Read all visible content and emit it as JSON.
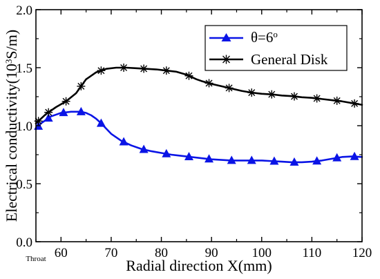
{
  "chart_data": {
    "type": "line",
    "xlabel": "Radial direction X(mm)",
    "ylabel_parts": {
      "pre": "Electrical conductivity(10",
      "sup": "3",
      "post": "S/m)"
    },
    "xlim": [
      55,
      120
    ],
    "ylim": [
      0.0,
      2.0
    ],
    "x_ticks": [
      60,
      70,
      80,
      90,
      100,
      110,
      120
    ],
    "y_ticks": [
      "0.0",
      "0.5",
      "1.0",
      "1.5",
      "2.0"
    ],
    "x_start_label": "Throat",
    "legend_position": "top-right",
    "series": [
      {
        "name_parts": {
          "pre": "θ=6",
          "sup": "o"
        },
        "color": "#0a14e6",
        "marker": "triangle",
        "x": [
          55,
          56,
          58,
          60,
          62,
          64,
          65,
          66,
          67,
          68,
          70,
          72,
          74,
          76,
          78,
          80,
          82,
          84,
          86,
          88,
          90,
          92,
          94,
          96,
          98,
          100,
          102,
          104,
          106,
          108,
          110,
          112,
          114,
          116,
          118,
          120
        ],
        "y": [
          0.97,
          1.02,
          1.08,
          1.11,
          1.12,
          1.12,
          1.11,
          1.09,
          1.06,
          1.02,
          0.93,
          0.87,
          0.83,
          0.8,
          0.78,
          0.765,
          0.75,
          0.74,
          0.73,
          0.72,
          0.71,
          0.705,
          0.7,
          0.7,
          0.7,
          0.7,
          0.695,
          0.69,
          0.685,
          0.685,
          0.69,
          0.7,
          0.715,
          0.73,
          0.735,
          0.73
        ],
        "marker_x": [
          55.5,
          57.5,
          60.5,
          64,
          68,
          72.5,
          76.5,
          81,
          85.5,
          89.5,
          94,
          98,
          102.5,
          106.5,
          111,
          115,
          118.5
        ]
      },
      {
        "name": "General Disk",
        "color": "#000000",
        "marker": "asterisk",
        "x": [
          55,
          57,
          59,
          61,
          63,
          65,
          67,
          69,
          71,
          73,
          75,
          77,
          79,
          81,
          83,
          85,
          86,
          87,
          88,
          90,
          92,
          94,
          96,
          98,
          100,
          102,
          104,
          106,
          108,
          110,
          112,
          114,
          116,
          118,
          120
        ],
        "y": [
          1.02,
          1.1,
          1.16,
          1.21,
          1.28,
          1.4,
          1.46,
          1.49,
          1.5,
          1.5,
          1.495,
          1.49,
          1.485,
          1.475,
          1.465,
          1.44,
          1.42,
          1.4,
          1.385,
          1.36,
          1.34,
          1.32,
          1.3,
          1.285,
          1.275,
          1.27,
          1.26,
          1.255,
          1.245,
          1.24,
          1.23,
          1.22,
          1.21,
          1.195,
          1.18
        ],
        "marker_x": [
          55.5,
          57.5,
          61,
          64,
          68,
          72.5,
          76.5,
          81,
          85.5,
          89.5,
          93.5,
          98,
          102,
          106.5,
          111,
          115,
          118.5
        ]
      }
    ]
  }
}
